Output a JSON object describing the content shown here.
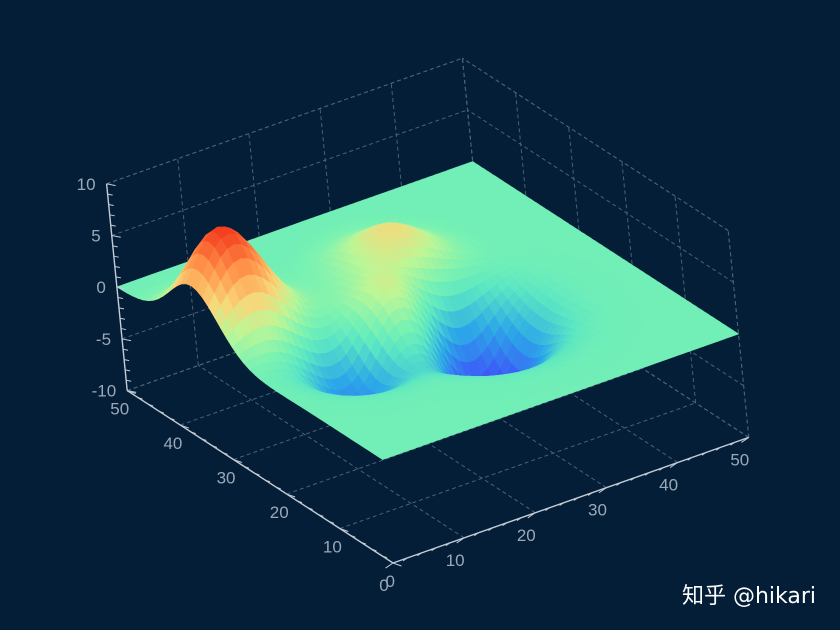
{
  "chart_data": {
    "type": "surface3d",
    "title": "",
    "x_range": [
      0,
      50
    ],
    "y_range": [
      0,
      50
    ],
    "z_range": [
      -10,
      10
    ],
    "x_ticks": [
      0,
      10,
      20,
      30,
      40,
      50
    ],
    "y_ticks": [
      0,
      10,
      20,
      30,
      40,
      50
    ],
    "z_ticks": [
      -10,
      -5,
      0,
      5,
      10
    ],
    "grid": true,
    "colormap": "rainbow",
    "surface_features": [
      {
        "kind": "peak",
        "x": 5,
        "y": 35,
        "z": 9.5
      },
      {
        "kind": "peak",
        "x": 28,
        "y": 35,
        "z": 4
      },
      {
        "kind": "peak",
        "x": 22,
        "y": 25,
        "z": 5
      },
      {
        "kind": "valley",
        "x": 12,
        "y": 22,
        "z": -5
      },
      {
        "kind": "valley",
        "x": 28,
        "y": 20,
        "z": -10
      },
      {
        "kind": "flat",
        "z": 0
      }
    ],
    "colors": {
      "background": "#031e36",
      "grid": "#4a6178",
      "axis": "#c3cbd4",
      "tick_text": "#9aa9b8"
    }
  },
  "watermark": "知乎 @hikari"
}
